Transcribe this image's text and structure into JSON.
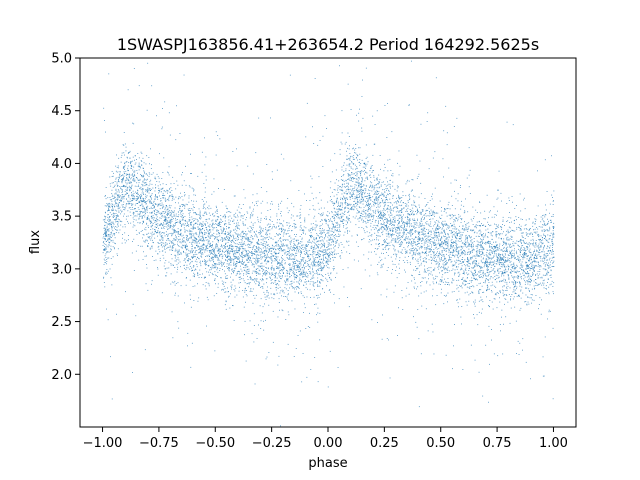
{
  "chart_data": {
    "type": "scatter",
    "title": "1SWASPJ163856.41+263654.2 Period 164292.5625s",
    "xlabel": "phase",
    "ylabel": "flux",
    "xlim": [
      -1.1,
      1.1
    ],
    "ylim": [
      1.5,
      5.0
    ],
    "xticks": [
      -1.0,
      -0.75,
      -0.5,
      -0.25,
      0.0,
      0.25,
      0.5,
      0.75,
      1.0
    ],
    "xtick_labels": [
      "−1.00",
      "−0.75",
      "−0.50",
      "−0.25",
      "0.00",
      "0.25",
      "0.50",
      "0.75",
      "1.00"
    ],
    "yticks": [
      2.0,
      2.5,
      3.0,
      3.5,
      4.0,
      4.5,
      5.0
    ],
    "ytick_labels": [
      "2.0",
      "2.5",
      "3.0",
      "3.5",
      "4.0",
      "4.5",
      "5.0"
    ],
    "grid": false,
    "point_color": "#1f77b4",
    "x_range": [
      -1.0,
      1.0
    ],
    "profile_phase": [
      0.0,
      0.05,
      0.1,
      0.15,
      0.2,
      0.3,
      0.4,
      0.5,
      0.6,
      0.7,
      0.8,
      0.9,
      1.0
    ],
    "profile_flux": [
      3.2,
      3.55,
      3.8,
      3.72,
      3.6,
      3.42,
      3.3,
      3.22,
      3.16,
      3.12,
      3.1,
      3.08,
      3.2
    ],
    "scatter_sigma": 0.2
  }
}
